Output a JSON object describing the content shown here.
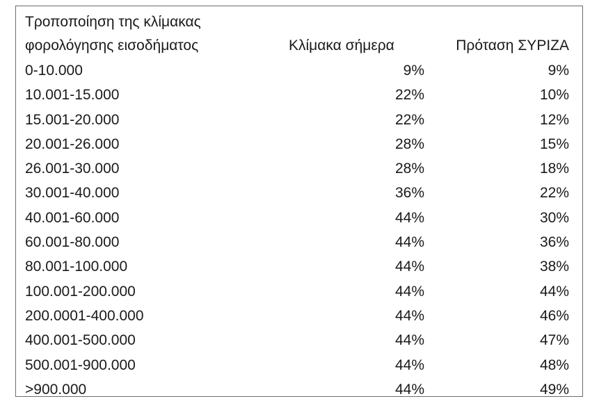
{
  "header": {
    "col1_line1": "Τροποποίηση της κλίμακας",
    "col1_line2": "φορολόγησης εισοδήματος",
    "col2": "Κλίμακα σήμερα",
    "col3": "Πρόταση ΣΥΡΙΖΑ"
  },
  "rows": [
    {
      "range": "0-10.000",
      "today": "9%",
      "proposal": "9%"
    },
    {
      "range": "10.001-15.000",
      "today": "22%",
      "proposal": "10%"
    },
    {
      "range": "15.001-20.000",
      "today": "22%",
      "proposal": "12%"
    },
    {
      "range": "20.001-26.000",
      "today": "28%",
      "proposal": "15%"
    },
    {
      "range": "26.001-30.000",
      "today": "28%",
      "proposal": "18%"
    },
    {
      "range": "30.001-40.000",
      "today": "36%",
      "proposal": "22%"
    },
    {
      "range": "40.001-60.000",
      "today": "44%",
      "proposal": "30%"
    },
    {
      "range": "60.001-80.000",
      "today": "44%",
      "proposal": "36%"
    },
    {
      "range": "80.001-100.000",
      "today": "44%",
      "proposal": "38%"
    },
    {
      "range": "100.001-200.000",
      "today": "44%",
      "proposal": "44%"
    },
    {
      "range": "200.0001-400.000",
      "today": "44%",
      "proposal": "46%"
    },
    {
      "range": "400.001-500.000",
      "today": "44%",
      "proposal": "47%"
    },
    {
      "range": "500.001-900.000",
      "today": "44%",
      "proposal": "48%"
    },
    {
      "range": ">900.000",
      "today": "44%",
      "proposal": "49%"
    }
  ]
}
